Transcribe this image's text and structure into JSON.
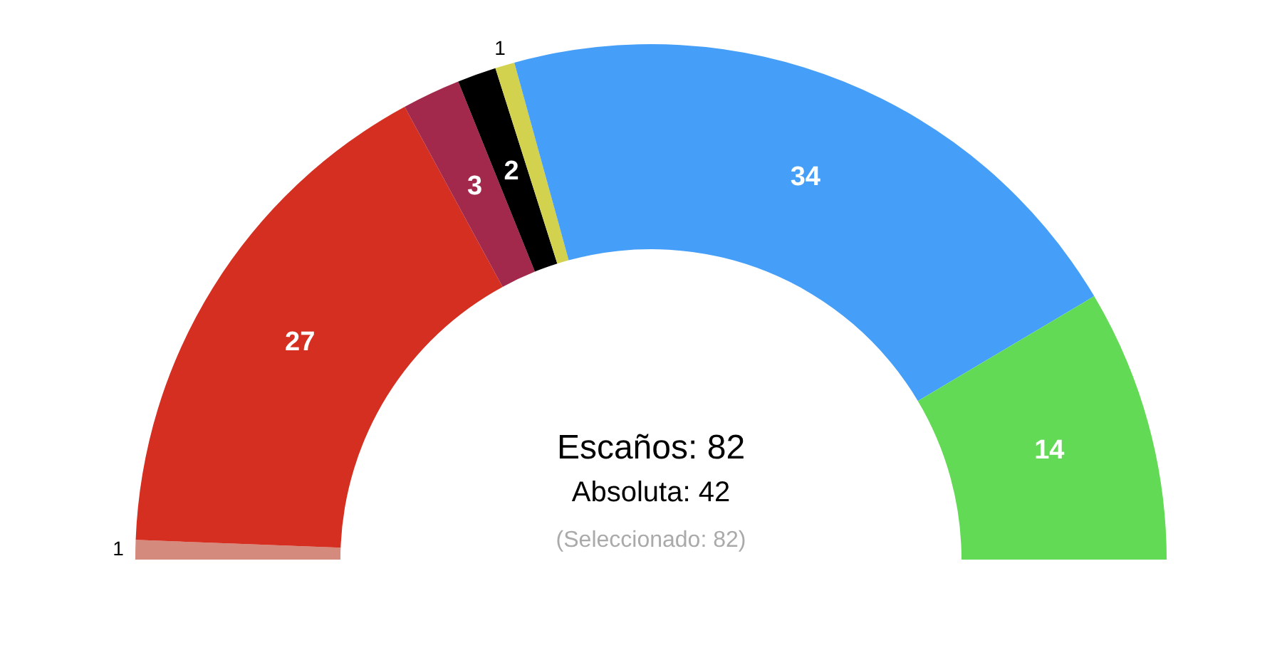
{
  "chart_data": {
    "type": "donut",
    "categories": [
      null,
      null,
      null,
      null,
      null,
      null,
      null
    ],
    "values": [
      1,
      27,
      3,
      2,
      1,
      34,
      14
    ],
    "colors": [
      "#d48a7c",
      "#d52f21",
      "#a2294b",
      "#000000",
      "#d2d24e",
      "#459ef7",
      "#63da56"
    ],
    "data_labels": true,
    "annotations": [
      "Escaños: 82",
      "Absoluta: 42",
      "(Seleccionado: 82)"
    ]
  }
}
